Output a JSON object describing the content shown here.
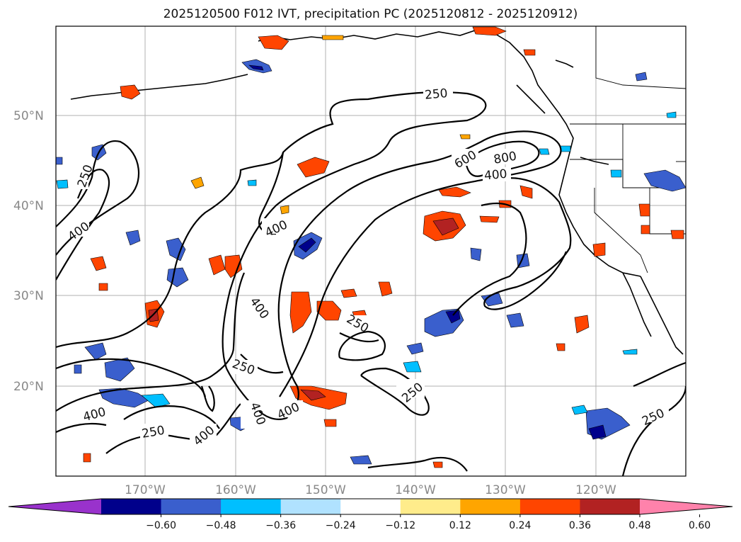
{
  "title": "2025120500 F012 IVT, precipitation PC (2025120812 - 2025120912)",
  "axes": {
    "lat_labels": [
      "50°N",
      "40°N",
      "30°N",
      "20°N"
    ],
    "lon_labels": [
      "170°W",
      "160°W",
      "150°W",
      "140°W",
      "130°W",
      "120°W"
    ]
  },
  "contour_labels": [
    "250",
    "250",
    "250",
    "250",
    "250",
    "250",
    "400",
    "400",
    "400",
    "400",
    "400",
    "400",
    "400",
    "400",
    "600",
    "800"
  ],
  "colorbar": {
    "colors": [
      "#9932cc",
      "#00008b",
      "#3a5fcd",
      "#00bfff",
      "#b0e2ff",
      "#ffffff",
      "#ffec8b",
      "#ffa500",
      "#ff4500",
      "#b22222",
      "#ff82ab"
    ],
    "tick_labels": [
      "−0.60",
      "−0.48",
      "−0.36",
      "−0.24",
      "−0.12",
      "0.12",
      "0.24",
      "0.36",
      "0.48",
      "0.60"
    ]
  }
}
